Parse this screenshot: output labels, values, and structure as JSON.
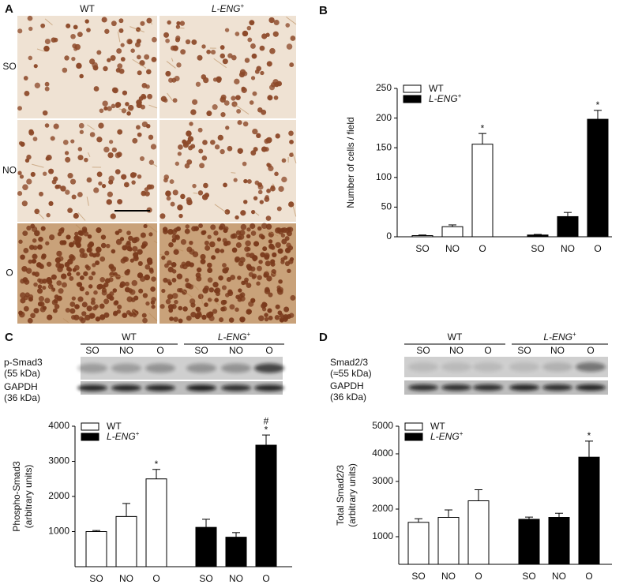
{
  "panel_a": {
    "label": "A",
    "columns": [
      "WT",
      "L-ENG+"
    ],
    "rows": [
      "SO",
      "NO",
      "O"
    ]
  },
  "blots": [
    {
      "label": "C",
      "groups": [
        "WT",
        "L-ENG+"
      ],
      "lanes": [
        "SO",
        "NO",
        "O",
        "SO",
        "NO",
        "O"
      ],
      "rows": [
        [
          "p-Smad3",
          "(55 kDa)"
        ],
        [
          "GAPDH",
          "(36 kDa)"
        ]
      ]
    },
    {
      "label": "D",
      "groups": [
        "WT",
        "L-ENG+"
      ],
      "lanes": [
        "SO",
        "NO",
        "O",
        "SO",
        "NO",
        "O"
      ],
      "rows": [
        [
          "Smad2/3",
          "(≈55 kDa)"
        ],
        [
          "GAPDH",
          "(36 kDa)"
        ]
      ]
    }
  ],
  "chart_data": [
    {
      "type": "bar",
      "panel": "B",
      "ylabel": [
        "Number of cells / field"
      ],
      "categories": [
        "SO",
        "NO",
        "O",
        "SO",
        "NO",
        "O"
      ],
      "ylim": [
        0,
        250
      ],
      "yticks": [
        0,
        50,
        100,
        150,
        200,
        250
      ],
      "series": [
        {
          "name": "WT",
          "color": "#ffffff",
          "values": [
            2,
            17,
            156,
            null,
            null,
            null
          ],
          "errors": [
            1,
            3,
            18,
            null,
            null,
            null
          ],
          "annotations": [
            null,
            null,
            "*",
            null,
            null,
            null
          ]
        },
        {
          "name": "L-ENG+",
          "color": "#000000",
          "values": [
            null,
            null,
            null,
            3,
            34,
            198
          ],
          "errors": [
            null,
            null,
            null,
            1,
            7,
            15
          ],
          "annotations": [
            null,
            null,
            null,
            null,
            null,
            "*"
          ]
        }
      ]
    },
    {
      "type": "bar",
      "ylabel": [
        "Phospho-Smad3",
        "(arbitrary units)"
      ],
      "categories": [
        "SO",
        "NO",
        "O",
        "SO",
        "NO",
        "O"
      ],
      "ylim": [
        0,
        4000
      ],
      "yticks": [
        1000,
        2000,
        3000,
        4000
      ],
      "series": [
        {
          "name": "WT",
          "color": "#ffffff",
          "values": [
            1000,
            1430,
            2500,
            null,
            null,
            null
          ],
          "errors": [
            30,
            370,
            270,
            null,
            null,
            null
          ],
          "annotations": [
            null,
            null,
            "*",
            null,
            null,
            null
          ]
        },
        {
          "name": "L-ENG+",
          "color": "#000000",
          "values": [
            null,
            null,
            null,
            1120,
            840,
            3460
          ],
          "errors": [
            null,
            null,
            null,
            230,
            130,
            290
          ],
          "annotations": [
            null,
            null,
            null,
            null,
            null,
            [
              "*",
              "#"
            ]
          ]
        }
      ]
    },
    {
      "type": "bar",
      "ylabel": [
        "Total Smad2/3",
        "(arbitrary units)"
      ],
      "categories": [
        "SO",
        "NO",
        "O",
        "SO",
        "NO",
        "O"
      ],
      "ylim": [
        0,
        5000
      ],
      "yticks": [
        1000,
        2000,
        3000,
        4000,
        5000
      ],
      "series": [
        {
          "name": "WT",
          "color": "#ffffff",
          "values": [
            1520,
            1700,
            2300,
            null,
            null,
            null
          ],
          "errors": [
            130,
            270,
            400,
            null,
            null,
            null
          ],
          "annotations": [
            null,
            null,
            null,
            null,
            null,
            null
          ]
        },
        {
          "name": "L-ENG+",
          "color": "#000000",
          "values": [
            null,
            null,
            null,
            1630,
            1700,
            3880
          ],
          "errors": [
            null,
            null,
            null,
            80,
            150,
            580
          ],
          "annotations": [
            null,
            null,
            null,
            null,
            null,
            "*"
          ]
        }
      ]
    }
  ]
}
